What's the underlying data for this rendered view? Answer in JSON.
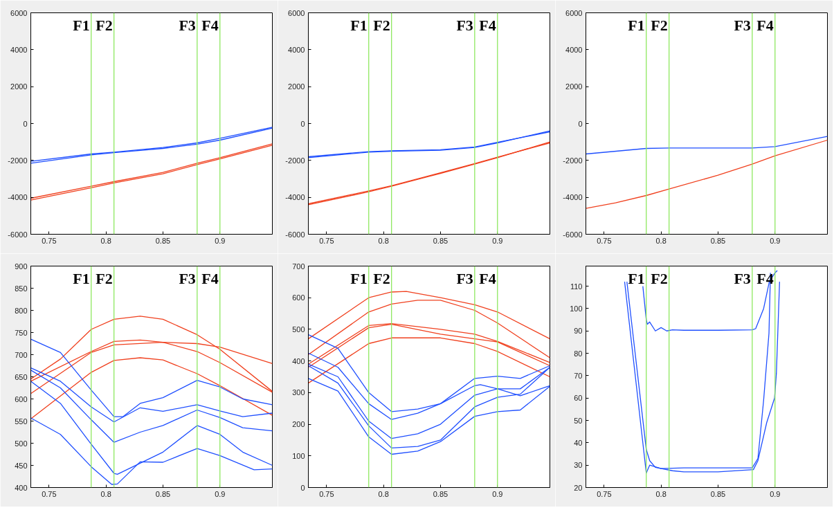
{
  "chart_data": [
    {
      "type": "line",
      "xlim": [
        0.734,
        0.946
      ],
      "xticks": [
        0.75,
        0.8,
        0.85,
        0.9
      ],
      "ylim": [
        -6000,
        6000
      ],
      "yticks": [
        -6000,
        -4000,
        -2000,
        0,
        2000,
        4000,
        6000
      ],
      "grid": false,
      "ref_lines": [
        {
          "axis": "x",
          "value": 0.787,
          "label": "F1",
          "color": "#8ee860"
        },
        {
          "axis": "x",
          "value": 0.807,
          "label": "F2",
          "color": "#8ee860"
        },
        {
          "axis": "x",
          "value": 0.88,
          "label": "F3",
          "color": "#8ee860"
        },
        {
          "axis": "x",
          "value": 0.9,
          "label": "F4",
          "color": "#8ee860"
        }
      ],
      "series": [
        {
          "color": "#1f4fff",
          "x": [
            0.734,
            0.787,
            0.807,
            0.85,
            0.88,
            0.9,
            0.946
          ],
          "values": [
            -2050,
            -1650,
            -1550,
            -1300,
            -1050,
            -800,
            -200
          ]
        },
        {
          "color": "#1f4fff",
          "x": [
            0.734,
            0.787,
            0.807,
            0.85,
            0.88,
            0.9,
            0.946
          ],
          "values": [
            -2150,
            -1700,
            -1580,
            -1350,
            -1120,
            -900,
            -250
          ]
        },
        {
          "color": "#f0401e",
          "x": [
            0.734,
            0.787,
            0.807,
            0.85,
            0.88,
            0.9,
            0.946
          ],
          "values": [
            -4050,
            -3400,
            -3150,
            -2650,
            -2150,
            -1850,
            -1100
          ]
        },
        {
          "color": "#f0401e",
          "x": [
            0.734,
            0.787,
            0.807,
            0.85,
            0.88,
            0.9,
            0.946
          ],
          "values": [
            -4150,
            -3480,
            -3220,
            -2720,
            -2230,
            -1920,
            -1180
          ]
        }
      ]
    },
    {
      "type": "line",
      "xlim": [
        0.734,
        0.946
      ],
      "xticks": [
        0.75,
        0.8,
        0.85,
        0.9
      ],
      "ylim": [
        -6000,
        6000
      ],
      "yticks": [
        -6000,
        -4000,
        -2000,
        0,
        2000,
        4000,
        6000
      ],
      "grid": false,
      "ref_lines": [
        {
          "axis": "x",
          "value": 0.787,
          "label": "F1",
          "color": "#8ee860"
        },
        {
          "axis": "x",
          "value": 0.807,
          "label": "F2",
          "color": "#8ee860"
        },
        {
          "axis": "x",
          "value": 0.88,
          "label": "F3",
          "color": "#8ee860"
        },
        {
          "axis": "x",
          "value": 0.9,
          "label": "F4",
          "color": "#8ee860"
        }
      ],
      "series": [
        {
          "color": "#1f4fff",
          "x": [
            0.734,
            0.787,
            0.807,
            0.85,
            0.88,
            0.9,
            0.946
          ],
          "values": [
            -1850,
            -1550,
            -1500,
            -1450,
            -1300,
            -1050,
            -400
          ]
        },
        {
          "color": "#1f4fff",
          "x": [
            0.734,
            0.787,
            0.807,
            0.85,
            0.88,
            0.9,
            0.946
          ],
          "values": [
            -1800,
            -1520,
            -1480,
            -1420,
            -1270,
            -1020,
            -450
          ]
        },
        {
          "color": "#f0401e",
          "x": [
            0.734,
            0.787,
            0.807,
            0.85,
            0.88,
            0.9,
            0.946
          ],
          "values": [
            -4400,
            -3700,
            -3400,
            -2700,
            -2200,
            -1850,
            -1000
          ]
        },
        {
          "color": "#f0401e",
          "x": [
            0.734,
            0.787,
            0.807,
            0.85,
            0.88,
            0.9,
            0.946
          ],
          "values": [
            -4350,
            -3650,
            -3370,
            -2670,
            -2170,
            -1820,
            -1050
          ]
        }
      ]
    },
    {
      "type": "line",
      "xlim": [
        0.734,
        0.946
      ],
      "xticks": [
        0.75,
        0.8,
        0.85,
        0.9
      ],
      "ylim": [
        -6000,
        6000
      ],
      "yticks": [
        -6000,
        -4000,
        -2000,
        0,
        2000,
        4000,
        6000
      ],
      "grid": false,
      "ref_lines": [
        {
          "axis": "x",
          "value": 0.787,
          "label": "F1",
          "color": "#8ee860"
        },
        {
          "axis": "x",
          "value": 0.807,
          "label": "F2",
          "color": "#8ee860"
        },
        {
          "axis": "x",
          "value": 0.88,
          "label": "F3",
          "color": "#8ee860"
        },
        {
          "axis": "x",
          "value": 0.9,
          "label": "F4",
          "color": "#8ee860"
        }
      ],
      "series": [
        {
          "color": "#1f4fff",
          "x": [
            0.734,
            0.787,
            0.807,
            0.85,
            0.88,
            0.9,
            0.946
          ],
          "values": [
            -1650,
            -1350,
            -1330,
            -1330,
            -1330,
            -1250,
            -700
          ]
        },
        {
          "color": "#f0401e",
          "x": [
            0.734,
            0.76,
            0.787,
            0.807,
            0.85,
            0.88,
            0.9,
            0.946
          ],
          "values": [
            -4600,
            -4300,
            -3900,
            -3550,
            -2800,
            -2200,
            -1750,
            -900
          ]
        }
      ]
    },
    {
      "type": "line",
      "xlim": [
        0.734,
        0.946
      ],
      "xticks": [
        0.75,
        0.8,
        0.85,
        0.9
      ],
      "ylim": [
        400,
        900
      ],
      "yticks": [
        400,
        450,
        500,
        550,
        600,
        650,
        700,
        750,
        800,
        850,
        900
      ],
      "grid": false,
      "ref_lines": [
        {
          "axis": "x",
          "value": 0.787,
          "label": "F1",
          "color": "#8ee860"
        },
        {
          "axis": "x",
          "value": 0.807,
          "label": "F2",
          "color": "#8ee860"
        },
        {
          "axis": "x",
          "value": 0.88,
          "label": "F3",
          "color": "#8ee860"
        },
        {
          "axis": "x",
          "value": 0.9,
          "label": "F4",
          "color": "#8ee860"
        }
      ],
      "series": [
        {
          "color": "#f0401e",
          "x": [
            0.734,
            0.76,
            0.787,
            0.807,
            0.83,
            0.85,
            0.88,
            0.9,
            0.946
          ],
          "values": [
            645,
            690,
            757,
            780,
            787,
            780,
            745,
            712,
            617
          ]
        },
        {
          "color": "#f0401e",
          "x": [
            0.734,
            0.787,
            0.807,
            0.83,
            0.85,
            0.88,
            0.9,
            0.946
          ],
          "values": [
            640,
            707,
            730,
            733,
            728,
            707,
            682,
            615
          ]
        },
        {
          "color": "#f0401e",
          "x": [
            0.734,
            0.787,
            0.807,
            0.85,
            0.88,
            0.9,
            0.946
          ],
          "values": [
            612,
            705,
            722,
            728,
            725,
            717,
            680
          ]
        },
        {
          "color": "#f0401e",
          "x": [
            0.734,
            0.787,
            0.807,
            0.83,
            0.85,
            0.88,
            0.9,
            0.946
          ],
          "values": [
            555,
            660,
            687,
            693,
            688,
            657,
            630,
            563
          ]
        },
        {
          "color": "#1f4fff",
          "x": [
            0.734,
            0.76,
            0.787,
            0.807,
            0.815,
            0.83,
            0.85,
            0.88,
            0.9,
            0.92,
            0.946
          ],
          "values": [
            735,
            705,
            620,
            560,
            560,
            590,
            603,
            642,
            627,
            600,
            587
          ]
        },
        {
          "color": "#1f4fff",
          "x": [
            0.734,
            0.76,
            0.787,
            0.807,
            0.83,
            0.85,
            0.88,
            0.9,
            0.92,
            0.946
          ],
          "values": [
            670,
            640,
            582,
            548,
            580,
            572,
            587,
            573,
            560,
            568
          ]
        },
        {
          "color": "#1f4fff",
          "x": [
            0.734,
            0.76,
            0.787,
            0.807,
            0.83,
            0.85,
            0.88,
            0.9,
            0.92,
            0.946
          ],
          "values": [
            665,
            625,
            553,
            502,
            525,
            540,
            575,
            558,
            535,
            528
          ]
        },
        {
          "color": "#1f4fff",
          "x": [
            0.734,
            0.76,
            0.787,
            0.807,
            0.81,
            0.83,
            0.85,
            0.88,
            0.9,
            0.92,
            0.946
          ],
          "values": [
            640,
            590,
            498,
            432,
            430,
            455,
            480,
            540,
            520,
            480,
            450
          ]
        },
        {
          "color": "#1f4fff",
          "x": [
            0.734,
            0.76,
            0.787,
            0.805,
            0.81,
            0.83,
            0.85,
            0.88,
            0.9,
            0.93,
            0.946
          ],
          "values": [
            557,
            520,
            447,
            407,
            408,
            458,
            457,
            488,
            472,
            440,
            442
          ]
        }
      ]
    },
    {
      "type": "line",
      "xlim": [
        0.734,
        0.946
      ],
      "xticks": [
        0.75,
        0.8,
        0.85,
        0.9
      ],
      "ylim": [
        0,
        700
      ],
      "yticks": [
        0,
        100,
        200,
        300,
        400,
        500,
        600,
        700
      ],
      "grid": false,
      "ref_lines": [
        {
          "axis": "x",
          "value": 0.787,
          "label": "F1",
          "color": "#8ee860"
        },
        {
          "axis": "x",
          "value": 0.807,
          "label": "F2",
          "color": "#8ee860"
        },
        {
          "axis": "x",
          "value": 0.88,
          "label": "F3",
          "color": "#8ee860"
        },
        {
          "axis": "x",
          "value": 0.9,
          "label": "F4",
          "color": "#8ee860"
        }
      ],
      "series": [
        {
          "color": "#f0401e",
          "x": [
            0.734,
            0.787,
            0.807,
            0.82,
            0.85,
            0.88,
            0.9,
            0.946
          ],
          "values": [
            470,
            600,
            618,
            620,
            600,
            578,
            555,
            470
          ]
        },
        {
          "color": "#f0401e",
          "x": [
            0.734,
            0.787,
            0.807,
            0.83,
            0.85,
            0.88,
            0.9,
            0.946
          ],
          "values": [
            420,
            555,
            580,
            592,
            592,
            560,
            520,
            410
          ]
        },
        {
          "color": "#f0401e",
          "x": [
            0.734,
            0.787,
            0.807,
            0.85,
            0.88,
            0.9,
            0.946
          ],
          "values": [
            390,
            512,
            518,
            500,
            485,
            462,
            395
          ]
        },
        {
          "color": "#f0401e",
          "x": [
            0.734,
            0.787,
            0.807,
            0.85,
            0.88,
            0.9,
            0.946
          ],
          "values": [
            380,
            505,
            516,
            485,
            470,
            460,
            385
          ]
        },
        {
          "color": "#f0401e",
          "x": [
            0.734,
            0.787,
            0.807,
            0.85,
            0.88,
            0.9,
            0.946
          ],
          "values": [
            330,
            455,
            473,
            473,
            455,
            430,
            350
          ]
        },
        {
          "color": "#1f4fff",
          "x": [
            0.734,
            0.76,
            0.787,
            0.807,
            0.83,
            0.85,
            0.88,
            0.9,
            0.92,
            0.946
          ],
          "values": [
            483,
            440,
            300,
            240,
            248,
            265,
            345,
            352,
            345,
            385
          ]
        },
        {
          "color": "#1f4fff",
          "x": [
            0.734,
            0.76,
            0.787,
            0.807,
            0.83,
            0.85,
            0.88,
            0.885,
            0.9,
            0.92,
            0.946
          ],
          "values": [
            425,
            380,
            265,
            215,
            235,
            265,
            322,
            325,
            312,
            312,
            380
          ]
        },
        {
          "color": "#1f4fff",
          "x": [
            0.734,
            0.76,
            0.787,
            0.807,
            0.83,
            0.85,
            0.88,
            0.9,
            0.92,
            0.946
          ],
          "values": [
            390,
            350,
            210,
            155,
            170,
            200,
            292,
            312,
            290,
            322
          ]
        },
        {
          "color": "#1f4fff",
          "x": [
            0.734,
            0.76,
            0.787,
            0.807,
            0.83,
            0.85,
            0.88,
            0.9,
            0.92,
            0.946
          ],
          "values": [
            385,
            330,
            195,
            125,
            130,
            150,
            255,
            285,
            295,
            380
          ]
        },
        {
          "color": "#1f4fff",
          "x": [
            0.734,
            0.76,
            0.787,
            0.807,
            0.83,
            0.85,
            0.88,
            0.9,
            0.92,
            0.946
          ],
          "values": [
            345,
            305,
            160,
            105,
            115,
            145,
            225,
            240,
            245,
            320
          ]
        }
      ]
    },
    {
      "type": "line",
      "xlim": [
        0.734,
        0.946
      ],
      "xticks": [
        0.75,
        0.8,
        0.85,
        0.9
      ],
      "ylim": [
        20,
        119
      ],
      "yticks": [
        20,
        30,
        40,
        50,
        60,
        70,
        80,
        90,
        100,
        110
      ],
      "grid": false,
      "ref_lines": [
        {
          "axis": "x",
          "value": 0.787,
          "label": "F1",
          "color": "#8ee860"
        },
        {
          "axis": "x",
          "value": 0.807,
          "label": "F2",
          "color": "#8ee860"
        },
        {
          "axis": "x",
          "value": 0.88,
          "label": "F3",
          "color": "#8ee860"
        },
        {
          "axis": "x",
          "value": 0.9,
          "label": "F4",
          "color": "#8ee860"
        }
      ],
      "series": [
        {
          "color": "#1f4fff",
          "x": [
            0.784,
            0.787,
            0.788,
            0.79,
            0.795,
            0.8,
            0.805,
            0.81,
            0.82,
            0.85,
            0.88,
            0.883,
            0.89,
            0.895,
            0.9,
            0.902
          ],
          "values": [
            110,
            95,
            93,
            94,
            90,
            91.5,
            90,
            90.5,
            90.3,
            90.3,
            90.5,
            91,
            100,
            112,
            116,
            117
          ]
        },
        {
          "color": "#1f4fff",
          "x": [
            0.768,
            0.787,
            0.79,
            0.8,
            0.82,
            0.85,
            0.88,
            0.885,
            0.89,
            0.8947,
            0.896
          ],
          "values": [
            112,
            26.5,
            30,
            28.5,
            28.8,
            28.8,
            28.8,
            33,
            59,
            89,
            116
          ]
        },
        {
          "color": "#1f4fff",
          "x": [
            0.77,
            0.787,
            0.79,
            0.795,
            0.81,
            0.82,
            0.85,
            0.881,
            0.885,
            0.8927,
            0.8996,
            0.9012,
            0.904
          ],
          "values": [
            112,
            37,
            32,
            29,
            27.5,
            27,
            27,
            28,
            32,
            49,
            60,
            71,
            112
          ]
        }
      ]
    }
  ]
}
